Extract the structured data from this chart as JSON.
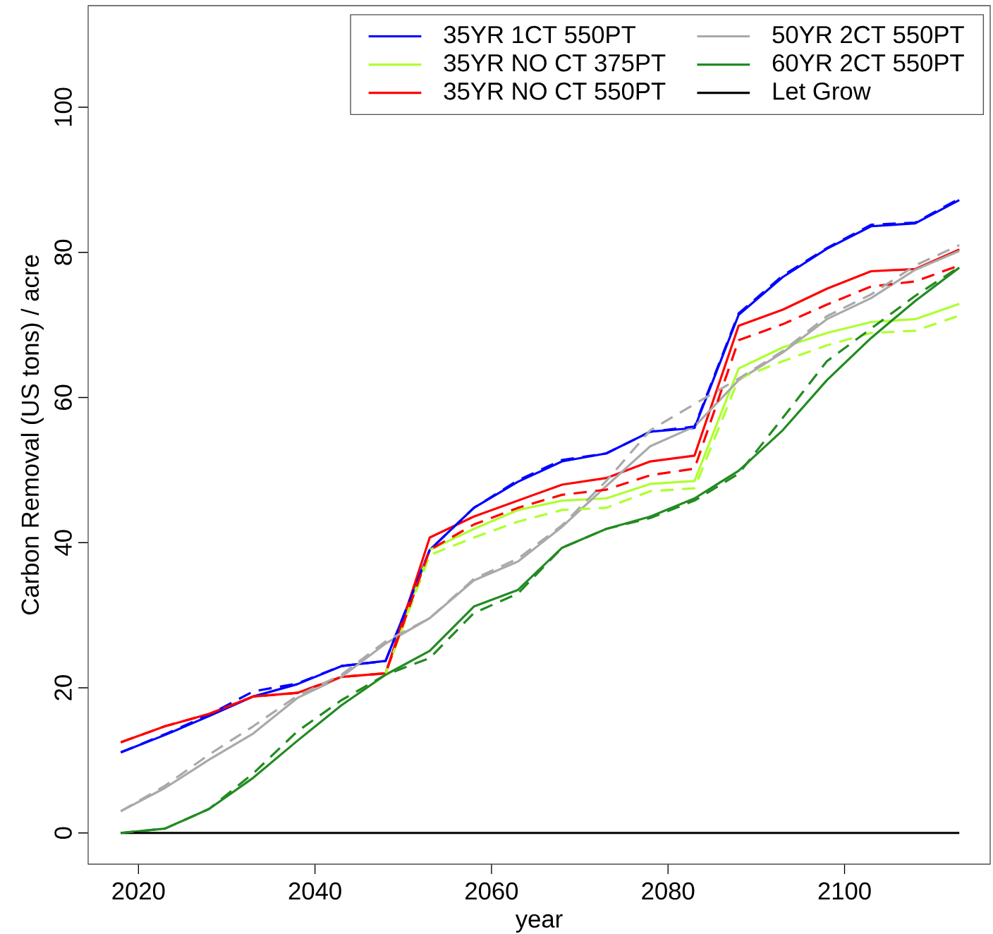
{
  "chart_data": {
    "type": "line",
    "xlabel": "year",
    "ylabel": "Carbon Removal (US tons) / acre",
    "x": [
      2018,
      2023,
      2028,
      2033,
      2038,
      2043,
      2048,
      2053,
      2058,
      2063,
      2068,
      2073,
      2078,
      2083,
      2088,
      2093,
      2098,
      2103,
      2108,
      2113
    ],
    "xlim": [
      2014.3,
      2116.5
    ],
    "ylim": [
      -4.3,
      114
    ],
    "xticks": [
      2020,
      2040,
      2060,
      2080,
      2100
    ],
    "yticks": [
      0,
      20,
      40,
      60,
      80,
      100
    ],
    "legend": "top right",
    "line_style": "solid",
    "series": [
      {
        "name": "35YR 1CT 550PT",
        "color": "#0000ff",
        "values": [
          11.1,
          13.5,
          16.1,
          18.8,
          20.5,
          23.0,
          23.7,
          39.0,
          44.8,
          48.4,
          51.2,
          52.3,
          55.3,
          55.8,
          71.4,
          76.6,
          80.5,
          83.6,
          84.0,
          87.2
        ]
      },
      {
        "name": "35YR NO CT 375PT",
        "color": "#adff2f",
        "values": [
          null,
          null,
          null,
          null,
          null,
          null,
          22.0,
          39.0,
          41.9,
          44.5,
          45.8,
          46.1,
          48.1,
          48.5,
          64.0,
          66.9,
          68.9,
          70.4,
          70.8,
          72.9
        ]
      },
      {
        "name": "35YR NO CT 550PT",
        "color": "#ff0000",
        "values": [
          12.5,
          14.7,
          16.4,
          18.8,
          19.3,
          21.5,
          22.0,
          40.7,
          43.6,
          45.8,
          48.0,
          48.9,
          51.2,
          52.0,
          69.9,
          72.1,
          75.0,
          77.4,
          77.7,
          80.4
        ]
      },
      {
        "name": "50YR 2CT 550PT",
        "color": "#a9a9a9",
        "values": [
          3.0,
          6.2,
          10.1,
          13.7,
          18.6,
          21.5,
          26.1,
          29.6,
          34.8,
          37.4,
          42.2,
          47.8,
          53.3,
          56.0,
          62.4,
          66.2,
          70.8,
          73.7,
          77.6,
          80.2
        ]
      },
      {
        "name": "60YR 2CT 550PT",
        "color": "#228b22",
        "values": [
          0.0,
          0.6,
          3.3,
          7.6,
          12.7,
          17.6,
          21.8,
          25.1,
          31.2,
          33.5,
          39.3,
          41.9,
          43.6,
          46.1,
          49.9,
          55.5,
          62.4,
          68.2,
          73.3,
          77.9
        ]
      },
      {
        "name": "Let Grow",
        "color": "#000000",
        "values": [
          0,
          0,
          0,
          0,
          0,
          0,
          0,
          0,
          0,
          0,
          0,
          0,
          0,
          0,
          0,
          0,
          0,
          0,
          0,
          0
        ]
      },
      {
        "color": "#0000ff",
        "line_style": "dashed",
        "values": [
          11.1,
          13.6,
          16.3,
          19.5,
          20.6,
          23.0,
          23.7,
          39.0,
          44.8,
          48.6,
          51.4,
          52.3,
          55.3,
          56.0,
          71.6,
          76.8,
          80.6,
          83.8,
          84.1,
          87.4
        ]
      },
      {
        "color": "#adff2f",
        "line_style": "dashed",
        "values": [
          null,
          null,
          null,
          null,
          null,
          null,
          22.0,
          38.3,
          40.7,
          42.9,
          44.5,
          44.8,
          47.1,
          47.5,
          62.6,
          65.0,
          67.2,
          68.9,
          69.2,
          71.3
        ]
      },
      {
        "color": "#ff0000",
        "line_style": "dashed",
        "values": [
          12.5,
          14.7,
          16.4,
          18.8,
          19.3,
          21.5,
          22.0,
          39.0,
          42.5,
          44.8,
          46.6,
          47.3,
          49.3,
          50.2,
          67.9,
          70.1,
          72.8,
          75.3,
          76.0,
          78.2
        ]
      },
      {
        "color": "#a9a9a9",
        "line_style": "dashed",
        "values": [
          3.0,
          6.5,
          10.8,
          14.7,
          18.9,
          21.8,
          26.4,
          29.6,
          35.0,
          37.8,
          42.4,
          48.5,
          55.5,
          59.1,
          62.6,
          66.4,
          71.2,
          74.2,
          78.2,
          81.0
        ]
      },
      {
        "color": "#228b22",
        "line_style": "dashed",
        "values": [
          0.0,
          0.6,
          3.3,
          8.2,
          14.0,
          18.3,
          21.8,
          24.1,
          30.3,
          33.0,
          39.3,
          41.9,
          43.4,
          45.8,
          49.5,
          57.2,
          65.0,
          69.5,
          74.0,
          78.0
        ]
      }
    ]
  }
}
